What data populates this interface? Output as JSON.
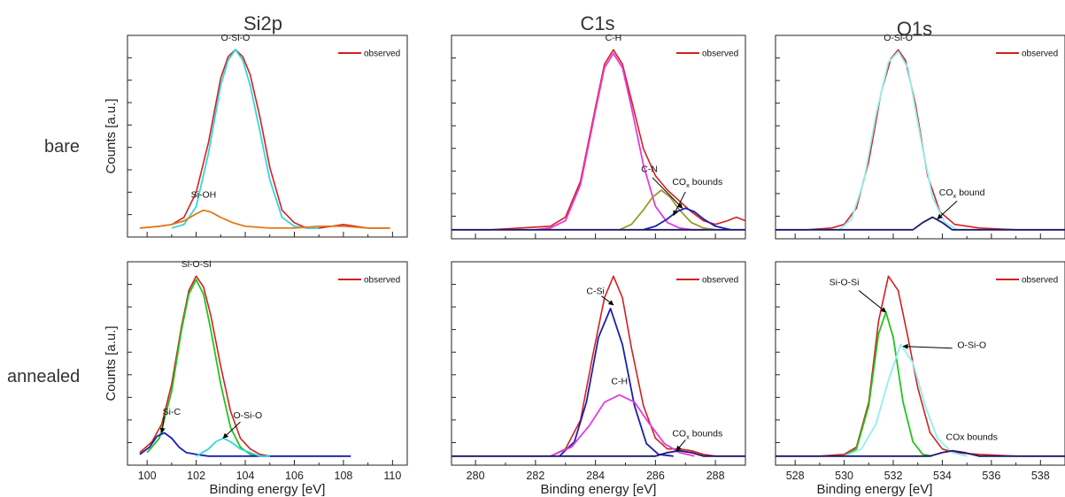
{
  "figure": {
    "column_titles": [
      "Si2p",
      "C1s",
      "O1s"
    ],
    "row_labels": [
      "bare",
      "annealed"
    ]
  },
  "chart_data": [
    {
      "type": "line",
      "region": "Si2p",
      "sample": "bare",
      "xlabel": "",
      "ylabel": "Counts [a.u.]",
      "xlim": [
        99.2,
        110.6
      ],
      "ylim": [
        -0.05,
        1.08
      ],
      "xticks": [],
      "yticks_visible": false,
      "legend": "observed",
      "legend_color": "#d42020",
      "legend_position": "top-right",
      "series": [
        {
          "name": "observed",
          "color": "#d42020",
          "x": [
            99.7,
            100.5,
            101.0,
            101.5,
            102.0,
            102.5,
            103.0,
            103.3,
            103.6,
            103.9,
            104.2,
            104.6,
            105.0,
            105.5,
            106.0,
            106.5,
            107.0,
            107.5,
            108.0,
            108.5,
            109.0,
            109.5,
            109.9
          ],
          "y": [
            0.0,
            0.01,
            0.02,
            0.06,
            0.2,
            0.48,
            0.84,
            0.96,
            1.0,
            0.96,
            0.86,
            0.62,
            0.34,
            0.1,
            0.03,
            0.0,
            0.0,
            0.01,
            0.02,
            0.01,
            0.0,
            0.0,
            0.0
          ]
        },
        {
          "color": "#33d6e0",
          "x": [
            101.0,
            101.5,
            102.0,
            102.5,
            103.0,
            103.3,
            103.6,
            103.9,
            104.2,
            104.6,
            105.0,
            105.5,
            106.0,
            106.5,
            107.0
          ],
          "y": [
            0.0,
            0.02,
            0.12,
            0.42,
            0.8,
            0.94,
            1.0,
            0.94,
            0.8,
            0.54,
            0.27,
            0.06,
            0.01,
            0.0,
            0.0
          ]
        },
        {
          "color": "#e07b1a",
          "x": [
            99.7,
            100.5,
            101.0,
            101.5,
            102.0,
            102.3,
            102.6,
            103.0,
            103.5,
            104.0,
            105.0,
            106.0,
            107.0,
            108.0,
            109.0,
            109.9
          ],
          "y": [
            0.0,
            0.01,
            0.02,
            0.04,
            0.08,
            0.1,
            0.09,
            0.06,
            0.03,
            0.01,
            0.0,
            0.0,
            0.01,
            0.01,
            0.0,
            0.0
          ]
        }
      ],
      "annotations": [
        {
          "text": "O-Si-O",
          "x": 103.6,
          "y": 1.05
        },
        {
          "text": "Si-OH",
          "x": 102.3,
          "y": 0.17
        }
      ]
    },
    {
      "type": "line",
      "region": "C1s",
      "sample": "bare",
      "xlabel": "",
      "ylabel": "",
      "xlim": [
        279.2,
        289.0
      ],
      "ylim": [
        -0.05,
        1.08
      ],
      "xticks": [],
      "yticks_visible": false,
      "legend": "observed",
      "legend_color": "#d42020",
      "legend_position": "top-right",
      "series": [
        {
          "name": "observed",
          "color": "#d42020",
          "x": [
            279.2,
            280.5,
            281.5,
            282.5,
            283.0,
            283.5,
            284.0,
            284.3,
            284.6,
            284.9,
            285.2,
            285.6,
            286.0,
            286.4,
            286.8,
            287.2,
            287.6,
            288.0,
            288.4,
            288.7,
            289.0
          ],
          "y": [
            0.0,
            0.0,
            0.01,
            0.02,
            0.07,
            0.27,
            0.68,
            0.92,
            1.0,
            0.92,
            0.72,
            0.45,
            0.3,
            0.22,
            0.16,
            0.1,
            0.05,
            0.03,
            0.05,
            0.07,
            0.05
          ]
        },
        {
          "color": "#e33be0",
          "x": [
            282.0,
            282.5,
            283.0,
            283.5,
            284.0,
            284.3,
            284.6,
            284.9,
            285.2,
            285.6,
            286.0,
            286.4,
            286.8,
            287.2,
            287.6
          ],
          "y": [
            0.0,
            0.01,
            0.05,
            0.25,
            0.66,
            0.9,
            0.98,
            0.9,
            0.68,
            0.36,
            0.13,
            0.04,
            0.01,
            0.0,
            0.0
          ]
        },
        {
          "color": "#9a9a2a",
          "x": [
            284.8,
            285.2,
            285.6,
            285.9,
            286.2,
            286.5,
            286.8,
            287.2,
            287.6,
            288.0
          ],
          "y": [
            0.0,
            0.03,
            0.11,
            0.18,
            0.22,
            0.18,
            0.11,
            0.04,
            0.01,
            0.0
          ]
        },
        {
          "color": "#1b1fb0",
          "x": [
            285.6,
            286.0,
            286.4,
            286.7,
            287.0,
            287.3,
            287.6,
            288.0,
            288.5
          ],
          "y": [
            0.0,
            0.02,
            0.06,
            0.1,
            0.12,
            0.1,
            0.06,
            0.02,
            0.0
          ]
        },
        {
          "color": "#1a1a6e",
          "x": [
            279.2,
            289.0
          ],
          "y": [
            0.0,
            0.0
          ]
        }
      ],
      "annotations": [
        {
          "text": "C-H",
          "x": 284.6,
          "y": 1.05
        },
        {
          "text": "C-N",
          "x": 285.8,
          "y": 0.32
        },
        {
          "text": "CO",
          "subscript": "x",
          "suffix": " bounds",
          "x": 287.4,
          "y": 0.25
        }
      ]
    },
    {
      "type": "line",
      "region": "O1s",
      "sample": "bare",
      "xlabel": "",
      "ylabel": "",
      "xlim": [
        527.2,
        539.0
      ],
      "ylim": [
        -0.05,
        1.08
      ],
      "xticks": [],
      "yticks_visible": false,
      "legend": "observed",
      "legend_color": "#d42020",
      "legend_position": "top-right",
      "series": [
        {
          "name": "observed",
          "color": "#d42020",
          "x": [
            527.2,
            528.5,
            529.5,
            530.0,
            530.5,
            531.0,
            531.5,
            531.9,
            532.2,
            532.5,
            532.9,
            533.4,
            533.9,
            534.5,
            535.5,
            537.0,
            539.0
          ],
          "y": [
            0.0,
            0.0,
            0.01,
            0.03,
            0.12,
            0.38,
            0.76,
            0.95,
            1.0,
            0.94,
            0.7,
            0.3,
            0.1,
            0.03,
            0.01,
            0.0,
            0.0
          ]
        },
        {
          "color": "#8ff0f0",
          "x": [
            529.8,
            530.3,
            530.8,
            531.3,
            531.8,
            532.2,
            532.6,
            533.1,
            533.6,
            534.1,
            534.6
          ],
          "y": [
            0.0,
            0.06,
            0.27,
            0.64,
            0.93,
            0.99,
            0.9,
            0.52,
            0.18,
            0.04,
            0.0
          ]
        },
        {
          "color": "#1a1a6e",
          "x": [
            527.2,
            532.8,
            533.2,
            533.6,
            534.0,
            534.4,
            539.0
          ],
          "y": [
            0.0,
            0.0,
            0.04,
            0.07,
            0.04,
            0.0,
            0.0
          ]
        }
      ],
      "annotations": [
        {
          "text": "O-Si-O",
          "x": 532.2,
          "y": 1.05
        },
        {
          "text": "CO",
          "subscript": "x",
          "suffix": " bound",
          "x": 534.8,
          "y": 0.19
        }
      ]
    },
    {
      "type": "line",
      "region": "Si2p",
      "sample": "annealed",
      "xlabel": "Binding energy [eV]",
      "ylabel": "Counts [a.u.]",
      "xlim": [
        99.2,
        110.6
      ],
      "ylim": [
        -0.05,
        1.08
      ],
      "xticks": [
        100,
        102,
        104,
        106,
        108,
        110
      ],
      "yticks_visible": false,
      "legend": "observed",
      "legend_color": "#d42020",
      "legend_position": "top-right",
      "series": [
        {
          "name": "observed",
          "color": "#d42020",
          "x": [
            99.7,
            100.2,
            100.6,
            101.0,
            101.4,
            101.7,
            102.0,
            102.3,
            102.6,
            103.0,
            103.4,
            103.8,
            104.2,
            104.6,
            105.0,
            106.0,
            107.0,
            108.3
          ],
          "y": [
            0.02,
            0.08,
            0.18,
            0.4,
            0.72,
            0.92,
            1.0,
            0.94,
            0.78,
            0.5,
            0.25,
            0.1,
            0.04,
            0.01,
            0.0,
            0.0,
            0.0,
            0.0
          ]
        },
        {
          "color": "#22c41f",
          "x": [
            100.0,
            100.5,
            101.0,
            101.4,
            101.7,
            102.0,
            102.3,
            102.6,
            103.0,
            103.4,
            103.8,
            104.2,
            104.6
          ],
          "y": [
            0.02,
            0.1,
            0.36,
            0.7,
            0.9,
            0.98,
            0.9,
            0.7,
            0.4,
            0.16,
            0.05,
            0.01,
            0.0
          ]
        },
        {
          "color": "#1b1fb0",
          "x": [
            99.7,
            100.1,
            100.4,
            100.7,
            101.0,
            101.3,
            101.6,
            102.0,
            102.5,
            103.0,
            104.0,
            106.0,
            108.3
          ],
          "y": [
            0.01,
            0.05,
            0.11,
            0.13,
            0.1,
            0.05,
            0.02,
            0.01,
            0.0,
            0.0,
            0.0,
            0.0,
            0.0
          ]
        },
        {
          "color": "#33d6e0",
          "x": [
            102.0,
            102.5,
            102.8,
            103.1,
            103.4,
            103.8,
            104.2,
            104.6,
            105.0
          ],
          "y": [
            0.0,
            0.04,
            0.08,
            0.1,
            0.08,
            0.04,
            0.02,
            0.0,
            0.0
          ]
        }
      ],
      "annotations": [
        {
          "text": "Si-O-Si",
          "x": 102.0,
          "y": 1.05
        },
        {
          "text": "Si-C",
          "x": 101.0,
          "y": 0.23
        },
        {
          "text": "O-Si-O",
          "x": 104.1,
          "y": 0.21
        }
      ]
    },
    {
      "type": "line",
      "region": "C1s",
      "sample": "annealed",
      "xlabel": "Binding energy [eV]",
      "ylabel": "",
      "xlim": [
        279.2,
        289.0
      ],
      "ylim": [
        -0.05,
        1.08
      ],
      "xticks": [
        280,
        282,
        284,
        286,
        288
      ],
      "yticks_visible": false,
      "legend": "observed",
      "legend_color": "#d42020",
      "legend_position": "top-right",
      "series": [
        {
          "name": "observed",
          "color": "#d42020",
          "x": [
            279.2,
            281.0,
            282.5,
            283.0,
            283.5,
            283.9,
            284.3,
            284.6,
            284.9,
            285.2,
            285.6,
            286.0,
            286.4,
            286.8,
            287.2,
            287.6,
            288.0,
            289.0
          ],
          "y": [
            0.0,
            0.0,
            0.0,
            0.04,
            0.2,
            0.55,
            0.88,
            1.0,
            0.88,
            0.6,
            0.28,
            0.1,
            0.04,
            0.04,
            0.03,
            0.01,
            0.0,
            0.0
          ]
        },
        {
          "color": "#1b1fb0",
          "x": [
            282.8,
            283.3,
            283.7,
            284.1,
            284.5,
            284.9,
            285.3,
            285.7,
            286.1,
            286.6
          ],
          "y": [
            0.0,
            0.08,
            0.3,
            0.66,
            0.82,
            0.62,
            0.28,
            0.07,
            0.01,
            0.0
          ]
        },
        {
          "color": "#e33be0",
          "x": [
            282.5,
            283.2,
            283.8,
            284.3,
            284.8,
            285.3,
            285.8,
            286.3,
            286.8,
            287.3
          ],
          "y": [
            0.0,
            0.05,
            0.17,
            0.3,
            0.34,
            0.3,
            0.18,
            0.07,
            0.02,
            0.0
          ]
        },
        {
          "color": "#1a1a6e",
          "x": [
            279.2,
            286.0,
            286.4,
            286.8,
            287.2,
            287.6,
            289.0
          ],
          "y": [
            0.0,
            0.0,
            0.02,
            0.03,
            0.02,
            0.0,
            0.0
          ]
        }
      ],
      "annotations": [
        {
          "text": "C-Si",
          "x": 284.0,
          "y": 0.9
        },
        {
          "text": "C-H",
          "x": 284.8,
          "y": 0.4
        },
        {
          "text": "CO",
          "subscript": "x",
          "suffix": " bounds",
          "x": 287.4,
          "y": 0.11
        }
      ]
    },
    {
      "type": "line",
      "region": "O1s",
      "sample": "annealed",
      "xlabel": "Binding energy [eV]",
      "ylabel": "",
      "xlim": [
        527.2,
        539.0
      ],
      "ylim": [
        -0.05,
        1.08
      ],
      "xticks": [
        528,
        530,
        532,
        534,
        536,
        538
      ],
      "yticks_visible": false,
      "legend": "observed",
      "legend_color": "#d42020",
      "legend_position": "top-right",
      "series": [
        {
          "name": "observed",
          "color": "#d42020",
          "x": [
            527.2,
            529.0,
            530.0,
            530.5,
            531.0,
            531.4,
            531.8,
            532.2,
            532.6,
            533.0,
            533.5,
            534.0,
            534.5,
            535.5,
            537.0,
            539.0
          ],
          "y": [
            0.0,
            0.0,
            0.01,
            0.05,
            0.3,
            0.75,
            1.0,
            0.92,
            0.66,
            0.38,
            0.13,
            0.04,
            0.02,
            0.01,
            0.0,
            0.0
          ]
        },
        {
          "color": "#22c41f",
          "x": [
            530.0,
            530.5,
            531.0,
            531.4,
            531.7,
            532.0,
            532.4,
            532.8,
            533.2,
            533.6
          ],
          "y": [
            0.0,
            0.04,
            0.28,
            0.68,
            0.8,
            0.66,
            0.3,
            0.08,
            0.01,
            0.0
          ]
        },
        {
          "color": "#8ff0f0",
          "x": [
            530.0,
            530.7,
            531.3,
            531.8,
            532.3,
            532.8,
            533.3,
            533.8,
            534.4,
            535.0
          ],
          "y": [
            0.0,
            0.04,
            0.18,
            0.42,
            0.62,
            0.52,
            0.28,
            0.1,
            0.02,
            0.0
          ]
        },
        {
          "color": "#1a1a6e",
          "x": [
            527.2,
            533.5,
            534.0,
            534.4,
            534.9,
            535.5,
            539.0
          ],
          "y": [
            0.0,
            0.0,
            0.02,
            0.03,
            0.02,
            0.0,
            0.0
          ]
        }
      ],
      "annotations": [
        {
          "text": "Si-O-Si",
          "x": 530.0,
          "y": 0.95
        },
        {
          "text": "O-Si-O",
          "x": 535.2,
          "y": 0.6
        },
        {
          "text": "COx bounds",
          "x": 535.2,
          "y": 0.09
        }
      ]
    }
  ]
}
